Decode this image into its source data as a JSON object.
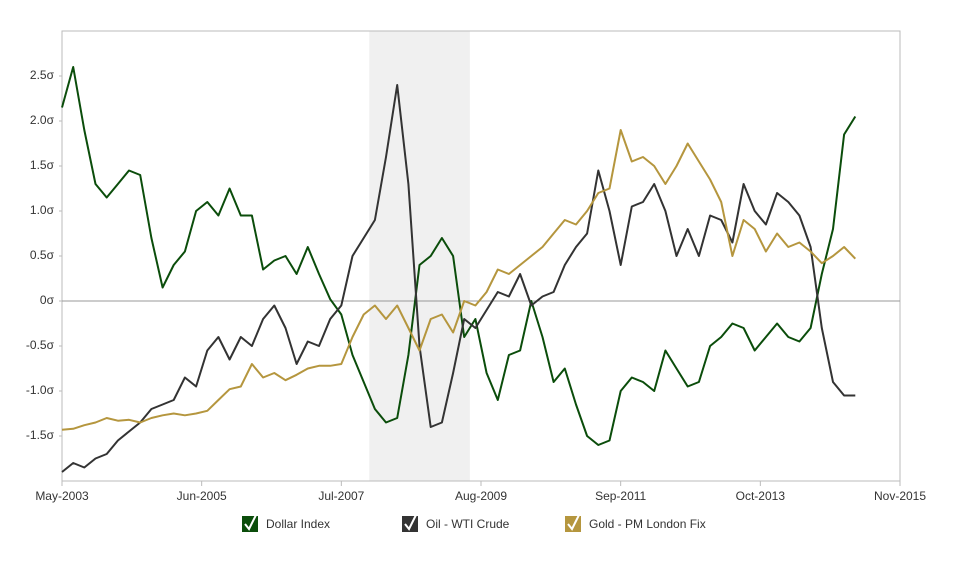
{
  "chart_data": {
    "type": "line",
    "x": [
      "2003-05",
      "2003-07",
      "2003-09",
      "2003-11",
      "2004-01",
      "2004-03",
      "2004-05",
      "2004-07",
      "2004-09",
      "2004-11",
      "2005-01",
      "2005-03",
      "2005-05",
      "2005-07",
      "2005-09",
      "2005-11",
      "2006-01",
      "2006-03",
      "2006-05",
      "2006-07",
      "2006-09",
      "2006-11",
      "2007-01",
      "2007-03",
      "2007-05",
      "2007-07",
      "2007-09",
      "2007-11",
      "2008-01",
      "2008-03",
      "2008-05",
      "2008-07",
      "2008-09",
      "2008-11",
      "2009-01",
      "2009-03",
      "2009-05",
      "2009-07",
      "2009-09",
      "2009-11",
      "2010-01",
      "2010-03",
      "2010-05",
      "2010-07",
      "2010-09",
      "2010-11",
      "2011-01",
      "2011-03",
      "2011-05",
      "2011-07",
      "2011-09",
      "2011-11",
      "2012-01",
      "2012-03",
      "2012-05",
      "2012-07",
      "2012-09",
      "2012-11",
      "2013-01",
      "2013-03",
      "2013-05",
      "2013-07",
      "2013-09",
      "2013-11",
      "2014-01",
      "2014-03",
      "2014-05",
      "2014-07",
      "2014-09",
      "2014-11",
      "2015-01",
      "2015-03"
    ],
    "series": [
      {
        "name": "Dollar Index",
        "color": "#0b4d0b",
        "values": [
          2.15,
          2.6,
          1.9,
          1.3,
          1.15,
          1.3,
          1.45,
          1.4,
          0.7,
          0.15,
          0.4,
          0.55,
          1.0,
          1.1,
          0.95,
          1.25,
          0.95,
          0.95,
          0.35,
          0.45,
          0.5,
          0.3,
          0.6,
          0.3,
          0.02,
          -0.15,
          -0.6,
          -0.9,
          -1.2,
          -1.35,
          -1.3,
          -0.6,
          0.4,
          0.5,
          0.7,
          0.5,
          -0.4,
          -0.2,
          -0.8,
          -1.1,
          -0.6,
          -0.55,
          0.0,
          -0.4,
          -0.9,
          -0.75,
          -1.15,
          -1.5,
          -1.6,
          -1.55,
          -1.0,
          -0.85,
          -0.9,
          -1.0,
          -0.55,
          -0.75,
          -0.95,
          -0.9,
          -0.5,
          -0.4,
          -0.25,
          -0.3,
          -0.55,
          -0.4,
          -0.25,
          -0.4,
          -0.45,
          -0.3,
          0.3,
          0.8,
          1.85,
          2.05
        ]
      },
      {
        "name": "Oil - WTI Crude",
        "color": "#333333",
        "values": [
          -1.9,
          -1.8,
          -1.85,
          -1.75,
          -1.7,
          -1.55,
          -1.45,
          -1.35,
          -1.2,
          -1.15,
          -1.1,
          -0.85,
          -0.95,
          -0.55,
          -0.4,
          -0.65,
          -0.4,
          -0.5,
          -0.2,
          -0.05,
          -0.3,
          -0.7,
          -0.45,
          -0.5,
          -0.2,
          -0.05,
          0.5,
          0.7,
          0.9,
          1.6,
          2.4,
          1.3,
          -0.5,
          -1.4,
          -1.35,
          -0.8,
          -0.2,
          -0.3,
          -0.1,
          0.1,
          0.05,
          0.3,
          -0.05,
          0.05,
          0.1,
          0.4,
          0.6,
          0.75,
          1.45,
          1.0,
          0.4,
          1.05,
          1.1,
          1.3,
          1.0,
          0.5,
          0.8,
          0.5,
          0.95,
          0.9,
          0.65,
          1.3,
          1.0,
          0.85,
          1.2,
          1.1,
          0.95,
          0.6,
          -0.3,
          -0.9,
          -1.05,
          -1.05
        ]
      },
      {
        "name": "Gold - PM London Fix",
        "color": "#b5963e",
        "values": [
          -1.43,
          -1.42,
          -1.38,
          -1.35,
          -1.3,
          -1.33,
          -1.32,
          -1.35,
          -1.3,
          -1.27,
          -1.25,
          -1.27,
          -1.25,
          -1.22,
          -1.1,
          -0.98,
          -0.95,
          -0.7,
          -0.85,
          -0.8,
          -0.88,
          -0.82,
          -0.75,
          -0.72,
          -0.72,
          -0.7,
          -0.4,
          -0.15,
          -0.05,
          -0.2,
          -0.05,
          -0.3,
          -0.55,
          -0.2,
          -0.15,
          -0.35,
          0.0,
          -0.05,
          0.1,
          0.35,
          0.3,
          0.4,
          0.5,
          0.6,
          0.75,
          0.9,
          0.85,
          1.0,
          1.2,
          1.25,
          1.9,
          1.55,
          1.6,
          1.5,
          1.3,
          1.5,
          1.75,
          1.55,
          1.35,
          1.1,
          0.5,
          0.9,
          0.8,
          0.55,
          0.75,
          0.6,
          0.65,
          0.55,
          0.42,
          0.5,
          0.6,
          0.47
        ]
      }
    ],
    "xlim": [
      "2003-05",
      "2015-11"
    ],
    "xticks": [
      {
        "value": "2003-05",
        "label": "May-2003"
      },
      {
        "value": "2005-06",
        "label": "Jun-2005"
      },
      {
        "value": "2007-07",
        "label": "Jul-2007"
      },
      {
        "value": "2009-08",
        "label": "Aug-2009"
      },
      {
        "value": "2011-09",
        "label": "Sep-2011"
      },
      {
        "value": "2013-10",
        "label": "Oct-2013"
      },
      {
        "value": "2015-11",
        "label": "Nov-2015"
      }
    ],
    "ylim": [
      -2,
      3
    ],
    "yticks": [
      {
        "value": 2.5,
        "label": "2.5σ"
      },
      {
        "value": 2,
        "label": "2.0σ"
      },
      {
        "value": 1.5,
        "label": "1.5σ"
      },
      {
        "value": 1,
        "label": "1.0σ"
      },
      {
        "value": 0.5,
        "label": "0.5σ"
      },
      {
        "value": 0,
        "label": "0σ"
      },
      {
        "value": -0.5,
        "label": "-0.5σ"
      },
      {
        "value": -1,
        "label": "-1.0σ"
      },
      {
        "value": -1.5,
        "label": "-1.5σ"
      }
    ],
    "shaded": [
      "2007-12",
      "2009-06"
    ],
    "grid": false
  }
}
